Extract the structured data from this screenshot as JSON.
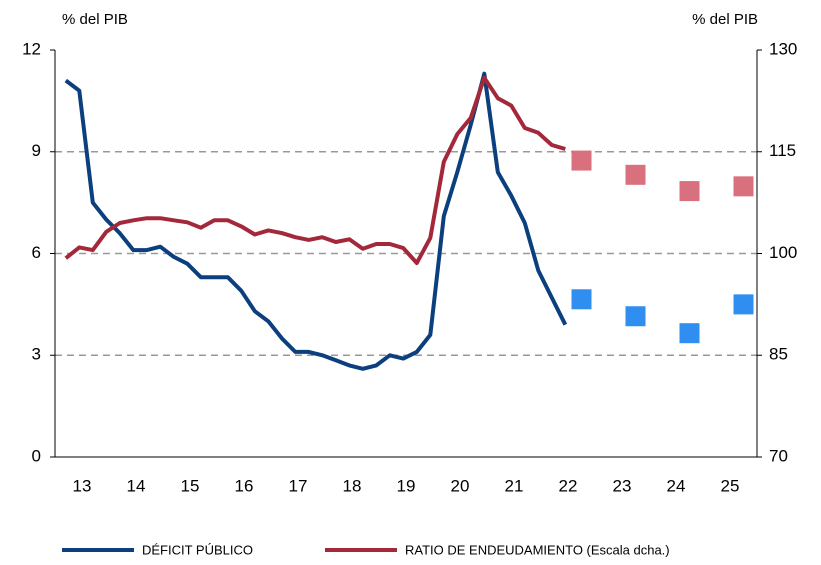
{
  "chart_data": {
    "type": "line",
    "y_label": "% del PIB",
    "y2_label": "% del PIB",
    "xlim": [
      12.5,
      25.5
    ],
    "xticks": [
      13,
      14,
      15,
      16,
      17,
      18,
      19,
      20,
      21,
      22,
      23,
      24,
      25
    ],
    "ylim": [
      0,
      12
    ],
    "yticks": [
      0,
      3,
      6,
      9,
      12
    ],
    "y2lim": [
      70,
      130
    ],
    "y2ticks": [
      70,
      85,
      100,
      115,
      130
    ],
    "grid": true,
    "series": [
      {
        "name": "DÉFICIT PÚBLICO",
        "color": "#0c3f7d",
        "x": [
          12.7,
          12.95,
          13.2,
          13.45,
          13.7,
          13.95,
          14.2,
          14.45,
          14.7,
          14.95,
          15.2,
          15.45,
          15.7,
          15.95,
          16.2,
          16.45,
          16.7,
          16.95,
          17.2,
          17.45,
          17.7,
          17.95,
          18.2,
          18.45,
          18.7,
          18.95,
          19.2,
          19.45,
          19.7,
          19.95,
          20.2,
          20.45,
          20.7,
          20.95,
          21.2,
          21.45,
          21.7,
          21.95
        ],
        "values": [
          11.1,
          10.8,
          7.5,
          7.0,
          6.6,
          6.1,
          6.1,
          6.2,
          5.9,
          5.7,
          5.3,
          5.3,
          5.3,
          4.9,
          4.3,
          4.0,
          3.5,
          3.1,
          3.1,
          3.0,
          2.85,
          2.7,
          2.6,
          2.7,
          3.0,
          2.9,
          3.1,
          3.6,
          7.1,
          8.4,
          9.8,
          11.3,
          8.4,
          7.7,
          6.9,
          5.5,
          4.7,
          3.9
        ]
      },
      {
        "name": "RATIO DE ENDEUDAMIENTO (Escala dcha.)",
        "color": "#a2283a",
        "axis": "y2",
        "x": [
          12.7,
          12.95,
          13.2,
          13.45,
          13.7,
          13.95,
          14.2,
          14.45,
          14.7,
          14.95,
          15.2,
          15.45,
          15.7,
          15.95,
          16.2,
          16.45,
          16.7,
          16.95,
          17.2,
          17.45,
          17.7,
          17.95,
          18.2,
          18.45,
          18.7,
          18.95,
          19.2,
          19.45,
          19.7,
          19.95,
          20.2,
          20.45,
          20.7,
          20.95,
          21.2,
          21.45,
          21.7,
          21.95
        ],
        "values": [
          99.3,
          100.9,
          100.5,
          103.2,
          104.5,
          104.9,
          105.2,
          105.2,
          104.9,
          104.6,
          103.8,
          104.9,
          104.9,
          104.0,
          102.8,
          103.4,
          103.0,
          102.4,
          102.0,
          102.4,
          101.7,
          102.1,
          100.7,
          101.4,
          101.4,
          100.8,
          98.6,
          102.3,
          113.5,
          117.6,
          120.0,
          125.9,
          122.9,
          121.8,
          118.5,
          117.8,
          116.0,
          115.4
        ]
      }
    ],
    "forecast_series": [
      {
        "color": "#2f8ef0",
        "x": [
          22.25,
          23.25,
          24.25,
          25.25
        ],
        "values": [
          4.65,
          4.15,
          3.65,
          4.5
        ]
      },
      {
        "color": "#d8707e",
        "axis": "y2",
        "x": [
          22.25,
          23.25,
          24.25,
          25.25
        ],
        "values": [
          113.7,
          111.6,
          109.2,
          109.9
        ]
      }
    ]
  }
}
